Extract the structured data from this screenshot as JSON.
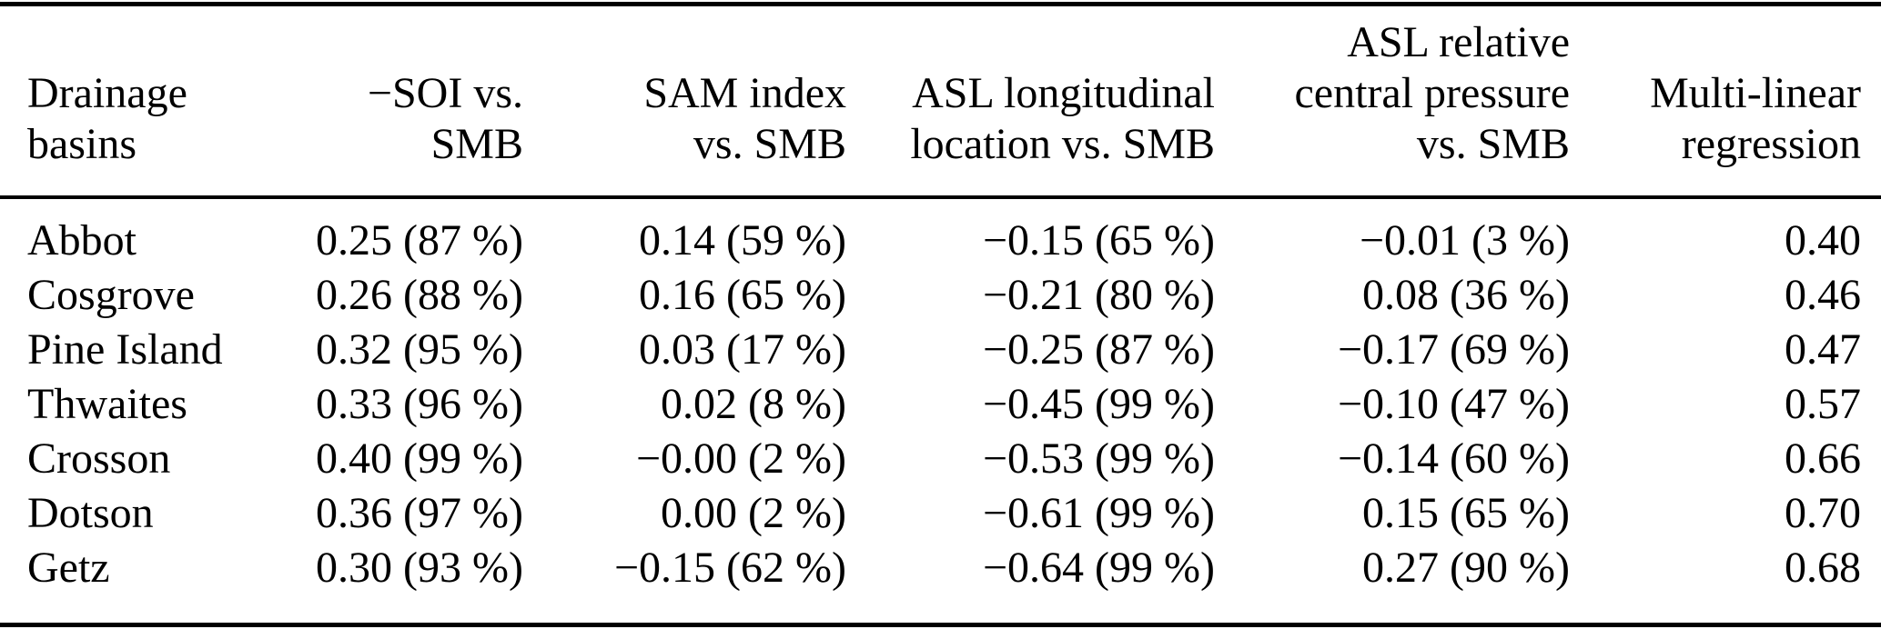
{
  "table": {
    "columns": [
      {
        "id": "basin",
        "align": "left",
        "label_lines": [
          "Drainage",
          "basins"
        ]
      },
      {
        "id": "soi",
        "align": "right",
        "label_lines": [
          "−SOI vs.",
          "SMB"
        ]
      },
      {
        "id": "sam",
        "align": "right",
        "label_lines": [
          "SAM index",
          "vs. SMB"
        ]
      },
      {
        "id": "asl_lon",
        "align": "right",
        "label_lines": [
          "ASL longitudinal",
          "location vs. SMB"
        ]
      },
      {
        "id": "asl_cp",
        "align": "right",
        "label_lines": [
          "ASL relative",
          "central pressure",
          "vs. SMB"
        ]
      },
      {
        "id": "mlr",
        "align": "right",
        "label_lines": [
          "Multi-linear",
          "regression"
        ]
      }
    ],
    "rows": [
      {
        "basin": "Abbot",
        "soi": "0.25 (87 %)",
        "sam": "0.14 (59 %)",
        "asl_lon": "−0.15 (65 %)",
        "asl_cp": "−0.01 (3 %)",
        "mlr": "0.40"
      },
      {
        "basin": "Cosgrove",
        "soi": "0.26 (88 %)",
        "sam": "0.16 (65 %)",
        "asl_lon": "−0.21 (80 %)",
        "asl_cp": "0.08 (36 %)",
        "mlr": "0.46"
      },
      {
        "basin": "Pine Island",
        "soi": "0.32 (95 %)",
        "sam": "0.03 (17 %)",
        "asl_lon": "−0.25 (87 %)",
        "asl_cp": "−0.17 (69 %)",
        "mlr": "0.47"
      },
      {
        "basin": "Thwaites",
        "soi": "0.33 (96 %)",
        "sam": "0.02 (8 %)",
        "asl_lon": "−0.45 (99 %)",
        "asl_cp": "−0.10 (47 %)",
        "mlr": "0.57"
      },
      {
        "basin": "Crosson",
        "soi": "0.40 (99 %)",
        "sam": "−0.00 (2 %)",
        "asl_lon": "−0.53 (99 %)",
        "asl_cp": "−0.14 (60 %)",
        "mlr": "0.66"
      },
      {
        "basin": "Dotson",
        "soi": "0.36 (97 %)",
        "sam": "0.00 (2 %)",
        "asl_lon": "−0.61 (99 %)",
        "asl_cp": "0.15 (65 %)",
        "mlr": "0.70"
      },
      {
        "basin": "Getz",
        "soi": "0.30 (93 %)",
        "sam": "−0.15 (62 %)",
        "asl_lon": "−0.64 (99 %)",
        "asl_cp": "0.27 (90 %)",
        "mlr": "0.68"
      }
    ]
  },
  "chart_data": {
    "type": "table",
    "columns": [
      "Drainage basins",
      "−SOI vs. SMB",
      "SAM index vs. SMB",
      "ASL longitudinal location vs. SMB",
      "ASL relative central pressure vs. SMB",
      "Multi-linear regression"
    ],
    "rows": [
      [
        "Abbot",
        "0.25 (87 %)",
        "0.14 (59 %)",
        "−0.15 (65 %)",
        "−0.01 (3 %)",
        "0.40"
      ],
      [
        "Cosgrove",
        "0.26 (88 %)",
        "0.16 (65 %)",
        "−0.21 (80 %)",
        "0.08 (36 %)",
        "0.46"
      ],
      [
        "Pine Island",
        "0.32 (95 %)",
        "0.03 (17 %)",
        "−0.25 (87 %)",
        "−0.17 (69 %)",
        "0.47"
      ],
      [
        "Thwaites",
        "0.33 (96 %)",
        "0.02 (8 %)",
        "−0.45 (99 %)",
        "−0.10 (47 %)",
        "0.57"
      ],
      [
        "Crosson",
        "0.40 (99 %)",
        "−0.00 (2 %)",
        "−0.53 (99 %)",
        "−0.14 (60 %)",
        "0.66"
      ],
      [
        "Dotson",
        "0.36 (97 %)",
        "0.00 (2 %)",
        "−0.61 (99 %)",
        "0.15 (65 %)",
        "0.70"
      ],
      [
        "Getz",
        "0.30 (93 %)",
        "−0.15 (62 %)",
        "−0.64 (99 %)",
        "0.27 (90 %)",
        "0.68"
      ]
    ]
  }
}
